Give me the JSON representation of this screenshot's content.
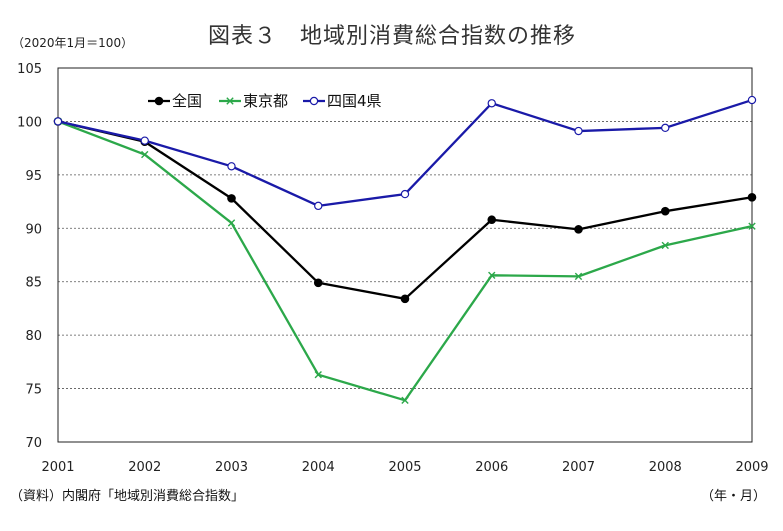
{
  "title": "図表３　地域別消費総合指数の推移",
  "unit_label": "（2020年1月＝100）",
  "source_label": "（資料）内閣府「地域別消費総合指数」",
  "x_unit_label": "（年・月）",
  "chart_data": {
    "type": "line",
    "x": [
      "2001",
      "2002",
      "2003",
      "2004",
      "2005",
      "2006",
      "2007",
      "2008",
      "2009"
    ],
    "ylim": [
      70,
      105
    ],
    "yticks": [
      70,
      75,
      80,
      85,
      90,
      95,
      100,
      105
    ],
    "grid": true,
    "legend_position": "top-left",
    "series": [
      {
        "name": "全国",
        "color": "#000000",
        "marker": "filled-circle",
        "values": [
          100,
          98.1,
          92.8,
          84.9,
          83.4,
          90.8,
          89.9,
          91.6,
          92.9
        ]
      },
      {
        "name": "東京都",
        "color": "#2ca84a",
        "marker": "x",
        "values": [
          100,
          96.9,
          90.5,
          76.3,
          73.9,
          85.6,
          85.5,
          88.4,
          90.2
        ]
      },
      {
        "name": "四国4県",
        "color": "#1a1aa8",
        "marker": "open-circle",
        "values": [
          100,
          98.2,
          95.8,
          92.1,
          93.2,
          101.7,
          99.1,
          99.4,
          102.0
        ]
      }
    ]
  }
}
